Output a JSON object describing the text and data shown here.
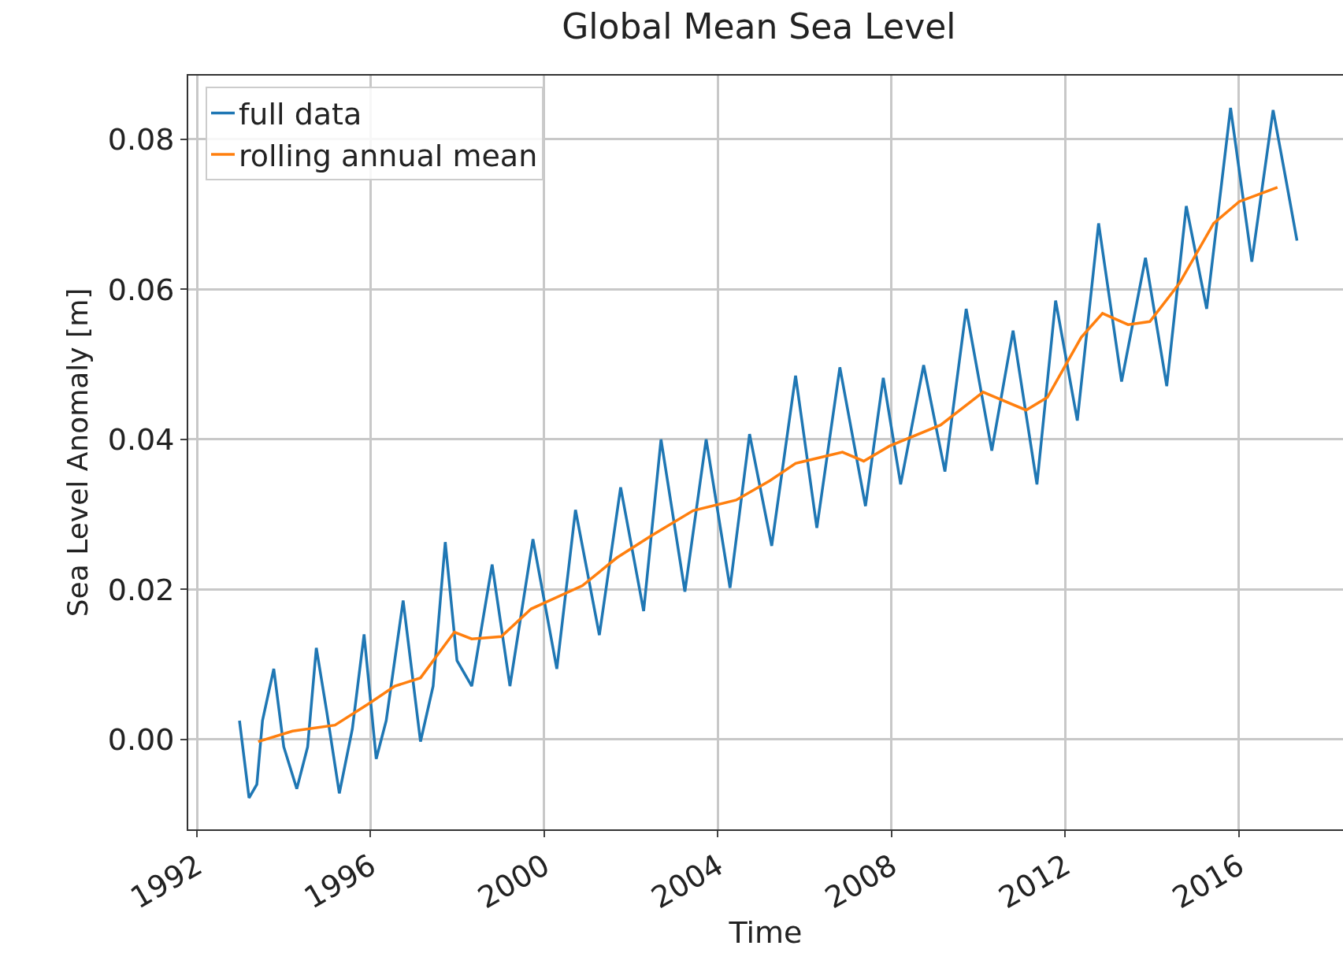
{
  "chart_data": {
    "type": "line",
    "title": "Global Mean Sea Level",
    "xlabel": "Time",
    "ylabel": "Sea Level Anomaly [m]",
    "xlim": [
      1991.8,
      2018.4
    ],
    "xticks": [
      1992,
      1996,
      2000,
      2004,
      2008,
      2012,
      2016
    ],
    "ylim": [
      -0.012,
      0.0885
    ],
    "yticks": [
      {
        "value": 0,
        "label": "0.00"
      },
      {
        "value": 0.02,
        "label": "0.02"
      },
      {
        "value": 0.04,
        "label": "0.04"
      },
      {
        "value": 0.06,
        "label": "0.06"
      },
      {
        "value": 0.08,
        "label": "0.08"
      }
    ],
    "grid": true,
    "legend": "top left",
    "line_style": "solid",
    "marker": "none",
    "series": [
      {
        "name": "full data",
        "color": "#1f77b4",
        "x": [
          1992.98,
          1993.2,
          1993.38,
          1993.51,
          1993.77,
          1994.0,
          1994.3,
          1994.55,
          1994.75,
          1994.99,
          1995.28,
          1995.58,
          1995.85,
          1996.13,
          1996.36,
          1996.75,
          1997.15,
          1997.44,
          1997.72,
          1997.99,
          1998.33,
          1998.8,
          1999.21,
          1999.74,
          2000.29,
          2000.72,
          2001.27,
          2001.76,
          2002.29,
          2002.69,
          2003.24,
          2003.73,
          2004.28,
          2004.73,
          2005.24,
          2005.79,
          2006.28,
          2006.81,
          2007.4,
          2007.81,
          2008.21,
          2008.74,
          2009.23,
          2009.72,
          2010.31,
          2010.8,
          2011.35,
          2011.78,
          2012.28,
          2012.77,
          2013.3,
          2013.85,
          2014.34,
          2014.79,
          2015.26,
          2015.81,
          2016.3,
          2016.79,
          2017.09,
          2017.34
        ],
        "values": [
          0.0025,
          -0.0078,
          -0.006,
          0.0025,
          0.0094,
          -0.001,
          -0.0066,
          -0.001,
          0.0122,
          0.0037,
          -0.0072,
          0.0014,
          0.014,
          -0.0026,
          0.0025,
          0.0185,
          -0.0003,
          0.0071,
          0.0263,
          0.0105,
          0.0071,
          0.0233,
          0.0071,
          0.0267,
          0.0094,
          0.0306,
          0.0139,
          0.0336,
          0.0171,
          0.04,
          0.0197,
          0.04,
          0.0202,
          0.0407,
          0.0258,
          0.0485,
          0.0282,
          0.0496,
          0.0311,
          0.0482,
          0.034,
          0.0499,
          0.0357,
          0.0574,
          0.0385,
          0.0545,
          0.034,
          0.0585,
          0.0425,
          0.0688,
          0.0477,
          0.0642,
          0.0471,
          0.0711,
          0.0574,
          0.0842,
          0.0637,
          0.0839,
          0.0745,
          0.0665
        ]
      },
      {
        "name": "rolling annual mean",
        "color": "#ff7f0e",
        "x": [
          1993.41,
          1994.2,
          1995.18,
          1995.97,
          1996.56,
          1997.15,
          1997.93,
          1998.33,
          1999.01,
          1999.7,
          2000.88,
          2001.67,
          2002.45,
          2003.43,
          2004.42,
          2005.2,
          2005.79,
          2006.87,
          2007.36,
          2007.95,
          2009.13,
          2010.11,
          2011.1,
          2011.59,
          2012.37,
          2012.86,
          2013.45,
          2013.95,
          2014.63,
          2015.42,
          2016.01,
          2016.89
        ],
        "values": [
          -0.0003,
          0.0011,
          0.0019,
          0.0048,
          0.0071,
          0.0082,
          0.0143,
          0.0134,
          0.0137,
          0.0174,
          0.0205,
          0.0242,
          0.0271,
          0.0305,
          0.0319,
          0.0345,
          0.0368,
          0.0383,
          0.0371,
          0.0391,
          0.0419,
          0.0463,
          0.0439,
          0.0456,
          0.0536,
          0.0568,
          0.0553,
          0.0557,
          0.0608,
          0.0688,
          0.0717,
          0.0736
        ]
      }
    ]
  }
}
